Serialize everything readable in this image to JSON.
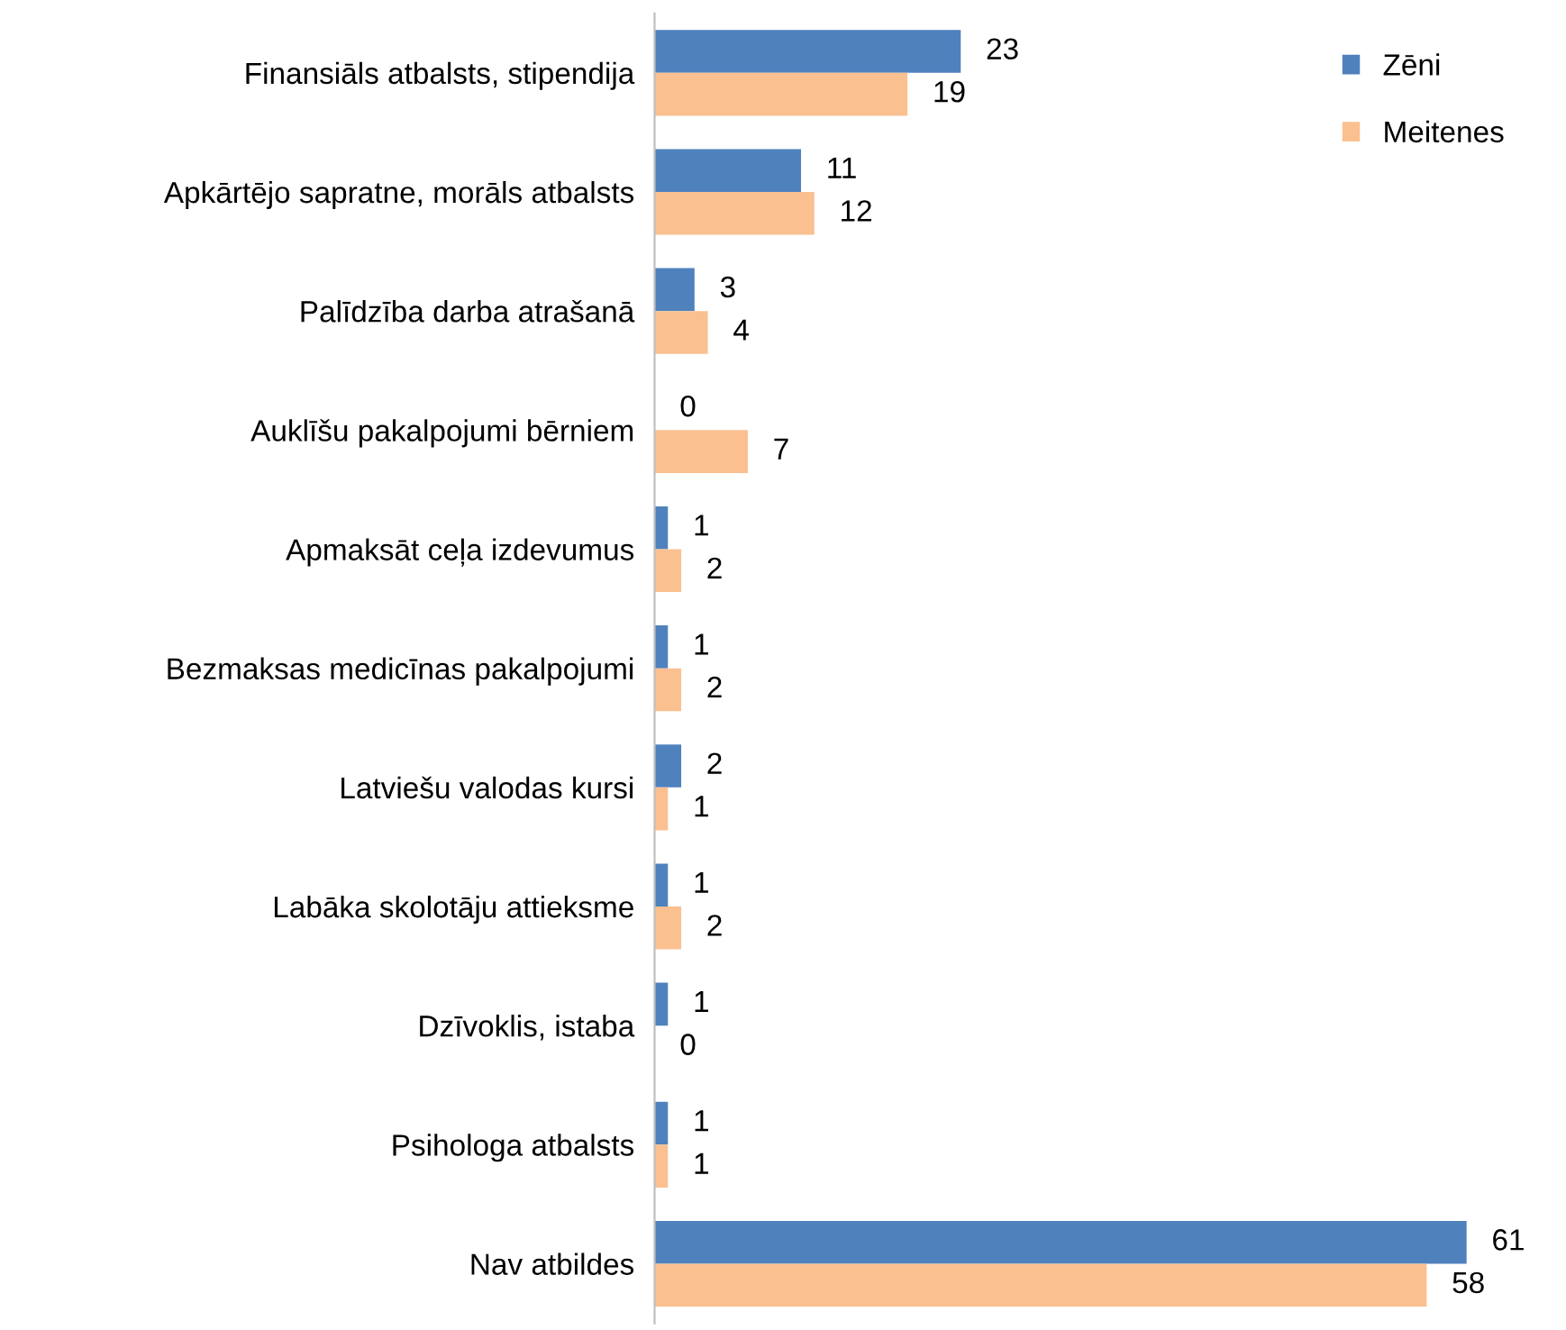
{
  "chart_data": {
    "type": "bar",
    "orientation": "horizontal",
    "categories": [
      "Finansiāls atbalsts, stipendija",
      "Apkārtējo sapratne, morāls atbalsts",
      "Palīdzība darba atrašanā",
      "Auklīšu pakalpojumi bērniem",
      "Apmaksāt ceļa izdevumus",
      "Bezmaksas medicīnas pakalpojumi",
      "Latviešu valodas kursi",
      "Labāka skolotāju attieksme",
      "Dzīvoklis, istaba",
      "Psihologa atbalsts",
      "Nav atbildes"
    ],
    "series": [
      {
        "name": "Zēni",
        "color": "#4f81bd",
        "values": [
          23,
          11,
          3,
          0,
          1,
          1,
          2,
          1,
          1,
          1,
          61
        ]
      },
      {
        "name": "Meitenes",
        "color": "#fac090",
        "values": [
          19,
          12,
          4,
          7,
          2,
          2,
          1,
          2,
          0,
          1,
          58
        ]
      }
    ],
    "data_labels": true,
    "legend": "top right",
    "grid": false
  }
}
